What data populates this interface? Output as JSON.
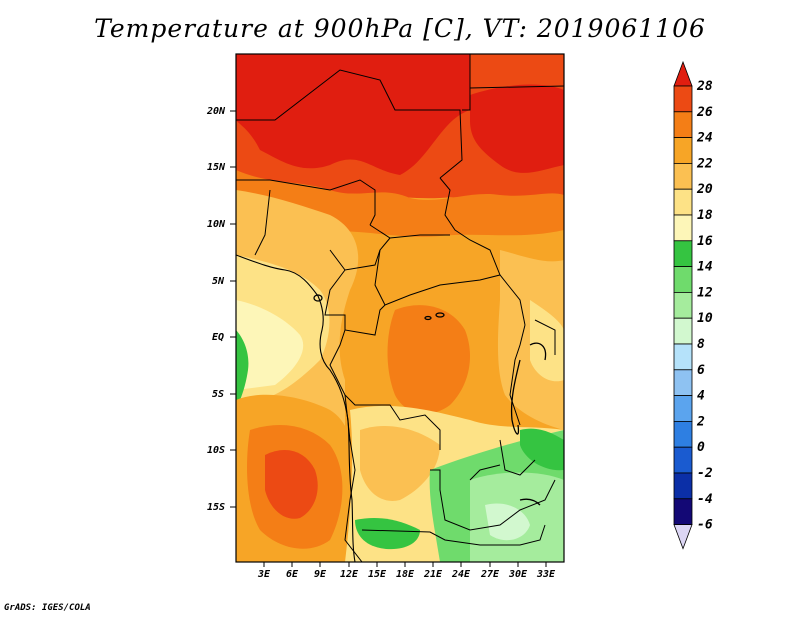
{
  "title": "Temperature at 900hPa [C], VT: 2019061106",
  "credit": "GrADS: IGES/COLA",
  "lat_labels": [
    "20N",
    "15N",
    "10N",
    "5N",
    "EQ",
    "5S",
    "10S",
    "15S"
  ],
  "lon_labels": [
    "3E",
    "6E",
    "9E",
    "12E",
    "15E",
    "18E",
    "21E",
    "24E",
    "27E",
    "30E",
    "33E"
  ],
  "colorbar": {
    "labels": [
      "28",
      "26",
      "24",
      "22",
      "20",
      "18",
      "16",
      "14",
      "12",
      "10",
      "8",
      "6",
      "4",
      "2",
      "0",
      "-2",
      "-4",
      "-6"
    ],
    "colors": [
      "#e01e10",
      "#ec4a14",
      "#f47e16",
      "#f7a526",
      "#fbc052",
      "#fde286",
      "#fdf6b8",
      "#35c441",
      "#6fdb6c",
      "#a5ec9d",
      "#d2f8cf",
      "#b5e2fa",
      "#8ec2f2",
      "#5ba4ee",
      "#2e7fe2",
      "#1a5bd0",
      "#0b2fa7",
      "#130875",
      "#dcd6f4"
    ]
  },
  "colors": {
    "sea": "#fdf6b8",
    "border": "#000000"
  }
}
